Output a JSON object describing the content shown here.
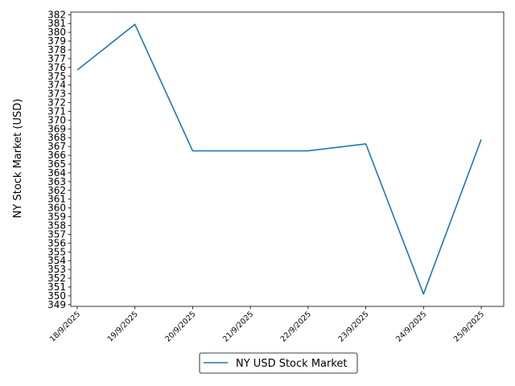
{
  "chart_data": {
    "type": "line",
    "title": "",
    "xlabel": "",
    "ylabel": "NY Stock Market (USD)",
    "categories": [
      "18/9/2025",
      "19/9/2025",
      "20/9/2025",
      "21/9/2025",
      "22/9/2025",
      "23/9/2025",
      "24/9/2025",
      "25/9/2025"
    ],
    "series": [
      {
        "name": "NY USD Stock Market",
        "values": [
          375.7,
          380.9,
          366.5,
          366.5,
          366.5,
          367.3,
          350.2,
          367.8
        ],
        "color": "#1f77b4"
      }
    ],
    "ylim": [
      349,
      382
    ],
    "yticks": [
      349,
      350,
      351,
      352,
      353,
      354,
      355,
      356,
      357,
      358,
      359,
      360,
      361,
      362,
      363,
      364,
      365,
      366,
      367,
      368,
      369,
      370,
      371,
      372,
      373,
      374,
      375,
      376,
      377,
      378,
      379,
      380,
      381,
      382
    ],
    "grid": false,
    "legend_position": "bottom-center"
  }
}
